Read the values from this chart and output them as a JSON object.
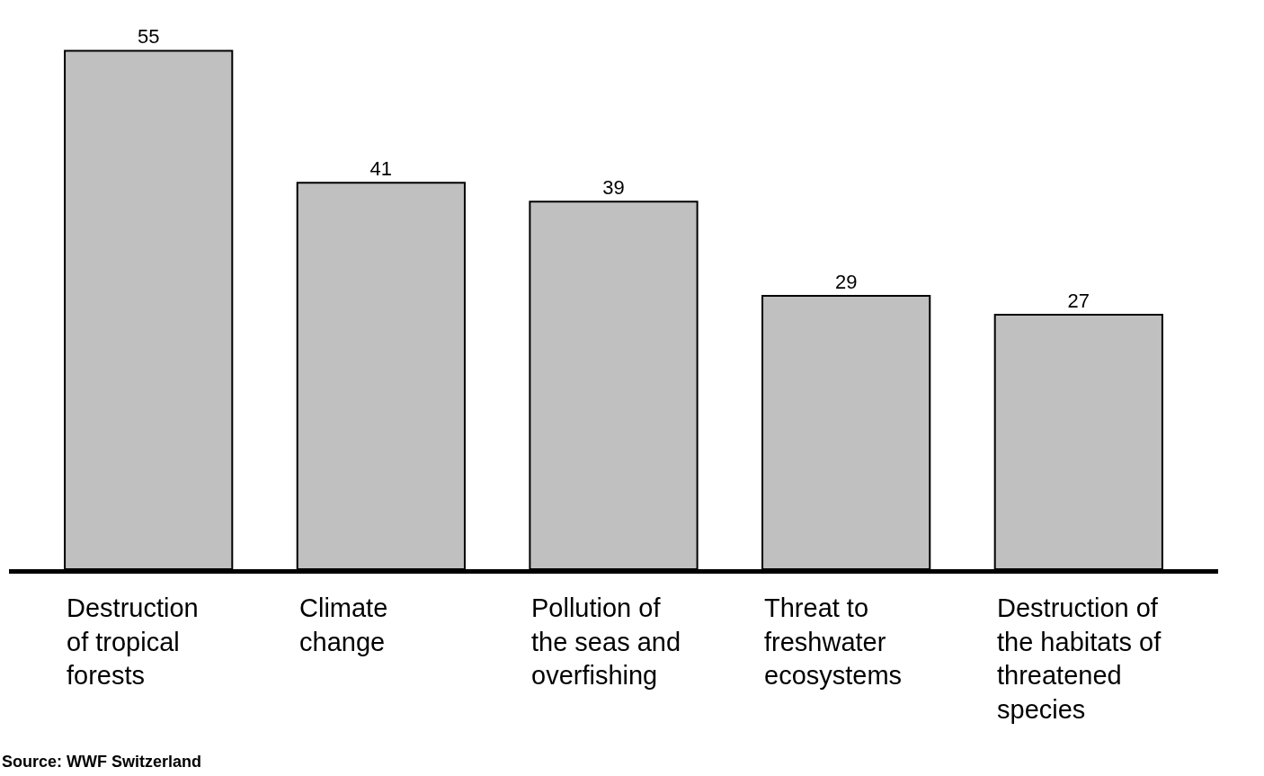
{
  "chart_data": {
    "type": "bar",
    "categories": [
      "Destruction\nof tropical\nforests",
      "Climate\nchange",
      "Pollution of\nthe seas and\noverfishing",
      "Threat to\nfreshwater\necosystems",
      "Destruction of\nthe habitats of\nthreatened\nspecies"
    ],
    "values": [
      55,
      41,
      39,
      29,
      27
    ],
    "color": "#c0c0c0",
    "ylim": [
      0,
      60
    ],
    "data_labels": true,
    "annotations": [
      "Source: WWF Switzerland"
    ]
  }
}
